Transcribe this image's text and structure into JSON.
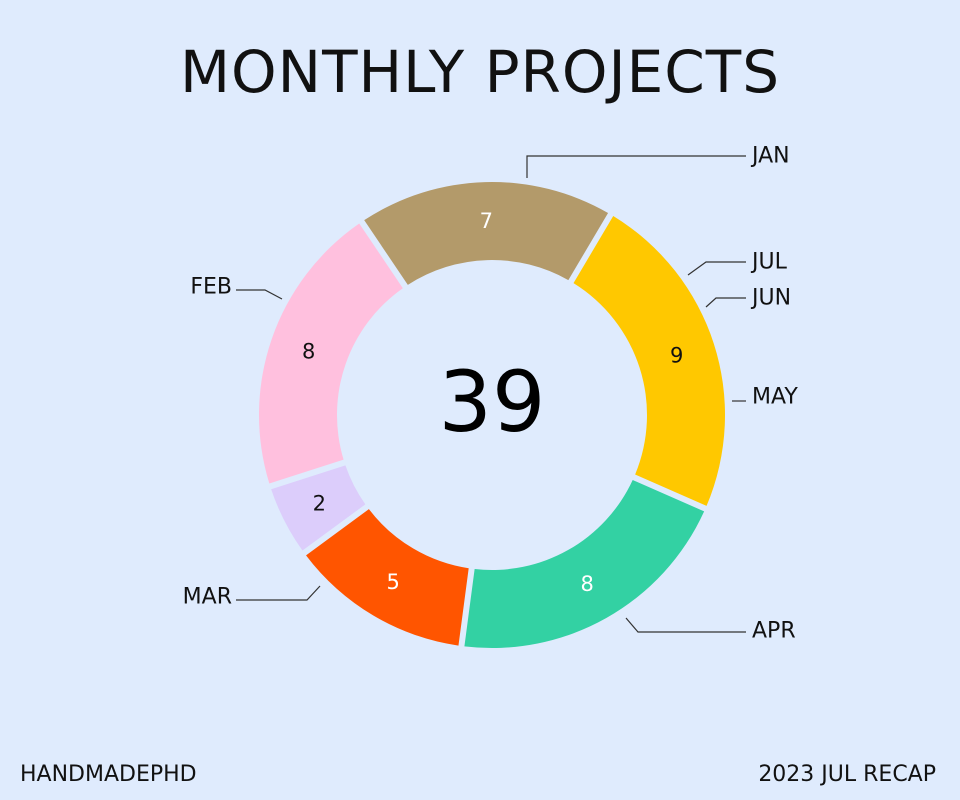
{
  "title": "MONTHLY PROJECTS",
  "footer": {
    "left": "HANDMADEPHD",
    "right": "2023 JUL RECAP"
  },
  "colors": {
    "background": "#dfebfd",
    "leader_line": "#333333"
  },
  "chart_data": {
    "type": "pie",
    "variant": "donut",
    "total_label": "39",
    "start_month": "JAN",
    "slices": [
      {
        "label": "JAN",
        "value": 8,
        "color": "#ffc0de",
        "text_color": "#111111"
      },
      {
        "label": "JUL",
        "value": 2,
        "color": "#dccdfb",
        "text_color": "#111111"
      },
      {
        "label": "JUN",
        "value": 0,
        "color": "#b9c8f0",
        "text_color": "#111111"
      },
      {
        "label": "MAY",
        "value": 5,
        "color": "#ff5500",
        "text_color": "#ffffff"
      },
      {
        "label": "APR",
        "value": 8,
        "color": "#33d1a3",
        "text_color": "#ffffff"
      },
      {
        "label": "MAR",
        "value": 9,
        "color": "#ffc800",
        "text_color": "#111111"
      },
      {
        "label": "FEB",
        "value": 7,
        "color": "#b39a6a",
        "text_color": "#ffffff"
      }
    ]
  }
}
